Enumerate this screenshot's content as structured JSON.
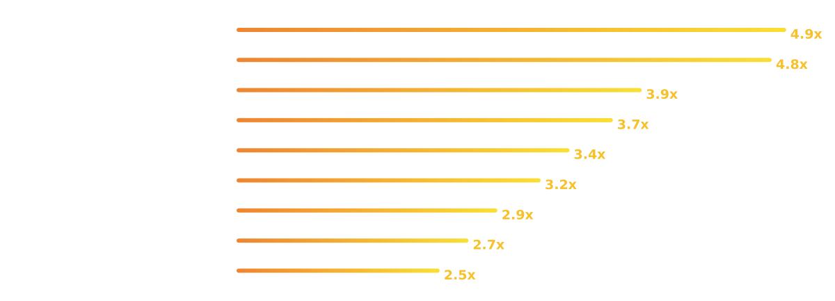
{
  "chart_data": {
    "type": "bar",
    "orientation": "horizontal",
    "categories": [
      null,
      null,
      null,
      null,
      null,
      null,
      null,
      null,
      null
    ],
    "values": [
      4.9,
      4.8,
      3.9,
      3.7,
      3.4,
      3.2,
      2.9,
      2.7,
      2.5
    ],
    "value_labels": [
      "4.9x",
      "4.8x",
      "3.9x",
      "3.7x",
      "3.4x",
      "3.2x",
      "2.9x",
      "2.7x",
      "2.5x"
    ],
    "colors": [
      "#ef8430",
      "#f9df34"
    ],
    "label_color": "#f6c12a"
  }
}
